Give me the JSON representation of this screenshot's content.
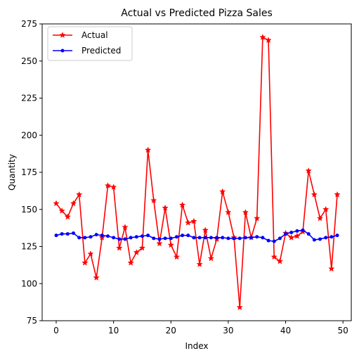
{
  "chart_data": {
    "type": "line",
    "title": "Actual vs Predicted Pizza Sales",
    "xlabel": "Index",
    "ylabel": "Quantity",
    "xlim": [
      -2.45,
      51.45
    ],
    "ylim": [
      75,
      275
    ],
    "xticks": [
      0,
      10,
      20,
      30,
      40,
      50
    ],
    "yticks": [
      75,
      100,
      125,
      150,
      175,
      200,
      225,
      250,
      275
    ],
    "grid": false,
    "legend_position": "top-left",
    "series": [
      {
        "name": "Actual",
        "color": "#ff0000",
        "marker": "star",
        "values": [
          154,
          149,
          145,
          154,
          160,
          114,
          120,
          104,
          131,
          166,
          165,
          124,
          138,
          114,
          121,
          124,
          190,
          156,
          127,
          151,
          126,
          118,
          153,
          141,
          142,
          113,
          136,
          117,
          130,
          162,
          148,
          131,
          84,
          148,
          131,
          144,
          266,
          264,
          118,
          115,
          134,
          131,
          132,
          135,
          176,
          160,
          144,
          150,
          110,
          160
        ]
      },
      {
        "name": "Predicted",
        "color": "#0000ff",
        "marker": "dot",
        "values": [
          132.5,
          133.5,
          133.5,
          134,
          131,
          131,
          131.5,
          133,
          132.5,
          132,
          131,
          130,
          130,
          131,
          131.5,
          132,
          132.5,
          130.5,
          130,
          130.5,
          130.5,
          131.5,
          132.5,
          132.5,
          131,
          131,
          131,
          131,
          131,
          131,
          130.5,
          130.5,
          130.5,
          131,
          131,
          131.5,
          131,
          129,
          128.5,
          130.5,
          133.5,
          134.5,
          135.5,
          136,
          133.5,
          129.5,
          130,
          131,
          131.5,
          132.5
        ]
      }
    ]
  }
}
